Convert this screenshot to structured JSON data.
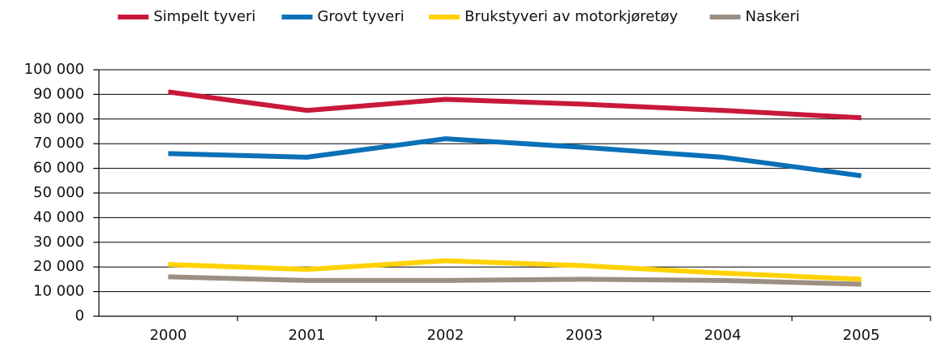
{
  "chart_data": {
    "type": "line",
    "categories": [
      "2000",
      "2001",
      "2002",
      "2003",
      "2004",
      "2005"
    ],
    "series": [
      {
        "name": "Simpelt tyveri",
        "color": "#c8193a",
        "values": [
          91000,
          83500,
          88000,
          86000,
          83500,
          80500
        ]
      },
      {
        "name": "Grovt tyveri",
        "color": "#0a70b8",
        "values": [
          66000,
          64500,
          72000,
          68500,
          64500,
          57000
        ]
      },
      {
        "name": "Brukstyveri av motorkjøretøy",
        "color": "#ffd200",
        "values": [
          21000,
          19000,
          22500,
          20500,
          17500,
          15000
        ]
      },
      {
        "name": "Naskeri",
        "color": "#9c8f82",
        "values": [
          16000,
          14500,
          14500,
          15000,
          14500,
          13000
        ]
      }
    ],
    "ylim": [
      0,
      100000
    ],
    "yticks": [
      0,
      {
        "value": 10000,
        "label": "10 000"
      },
      {
        "value": 20000,
        "label": "20 000"
      },
      {
        "value": 30000,
        "label": "30 000"
      },
      {
        "value": 40000,
        "label": "40 000"
      },
      {
        "value": 50000,
        "label": "50 000"
      },
      {
        "value": 60000,
        "label": "60 000"
      },
      {
        "value": 70000,
        "label": "70 000"
      },
      {
        "value": 80000,
        "label": "80 000"
      },
      {
        "value": 90000,
        "label": "90 000"
      },
      {
        "value": 100000,
        "label": "100 000"
      }
    ],
    "grid": true,
    "legend": "top"
  }
}
